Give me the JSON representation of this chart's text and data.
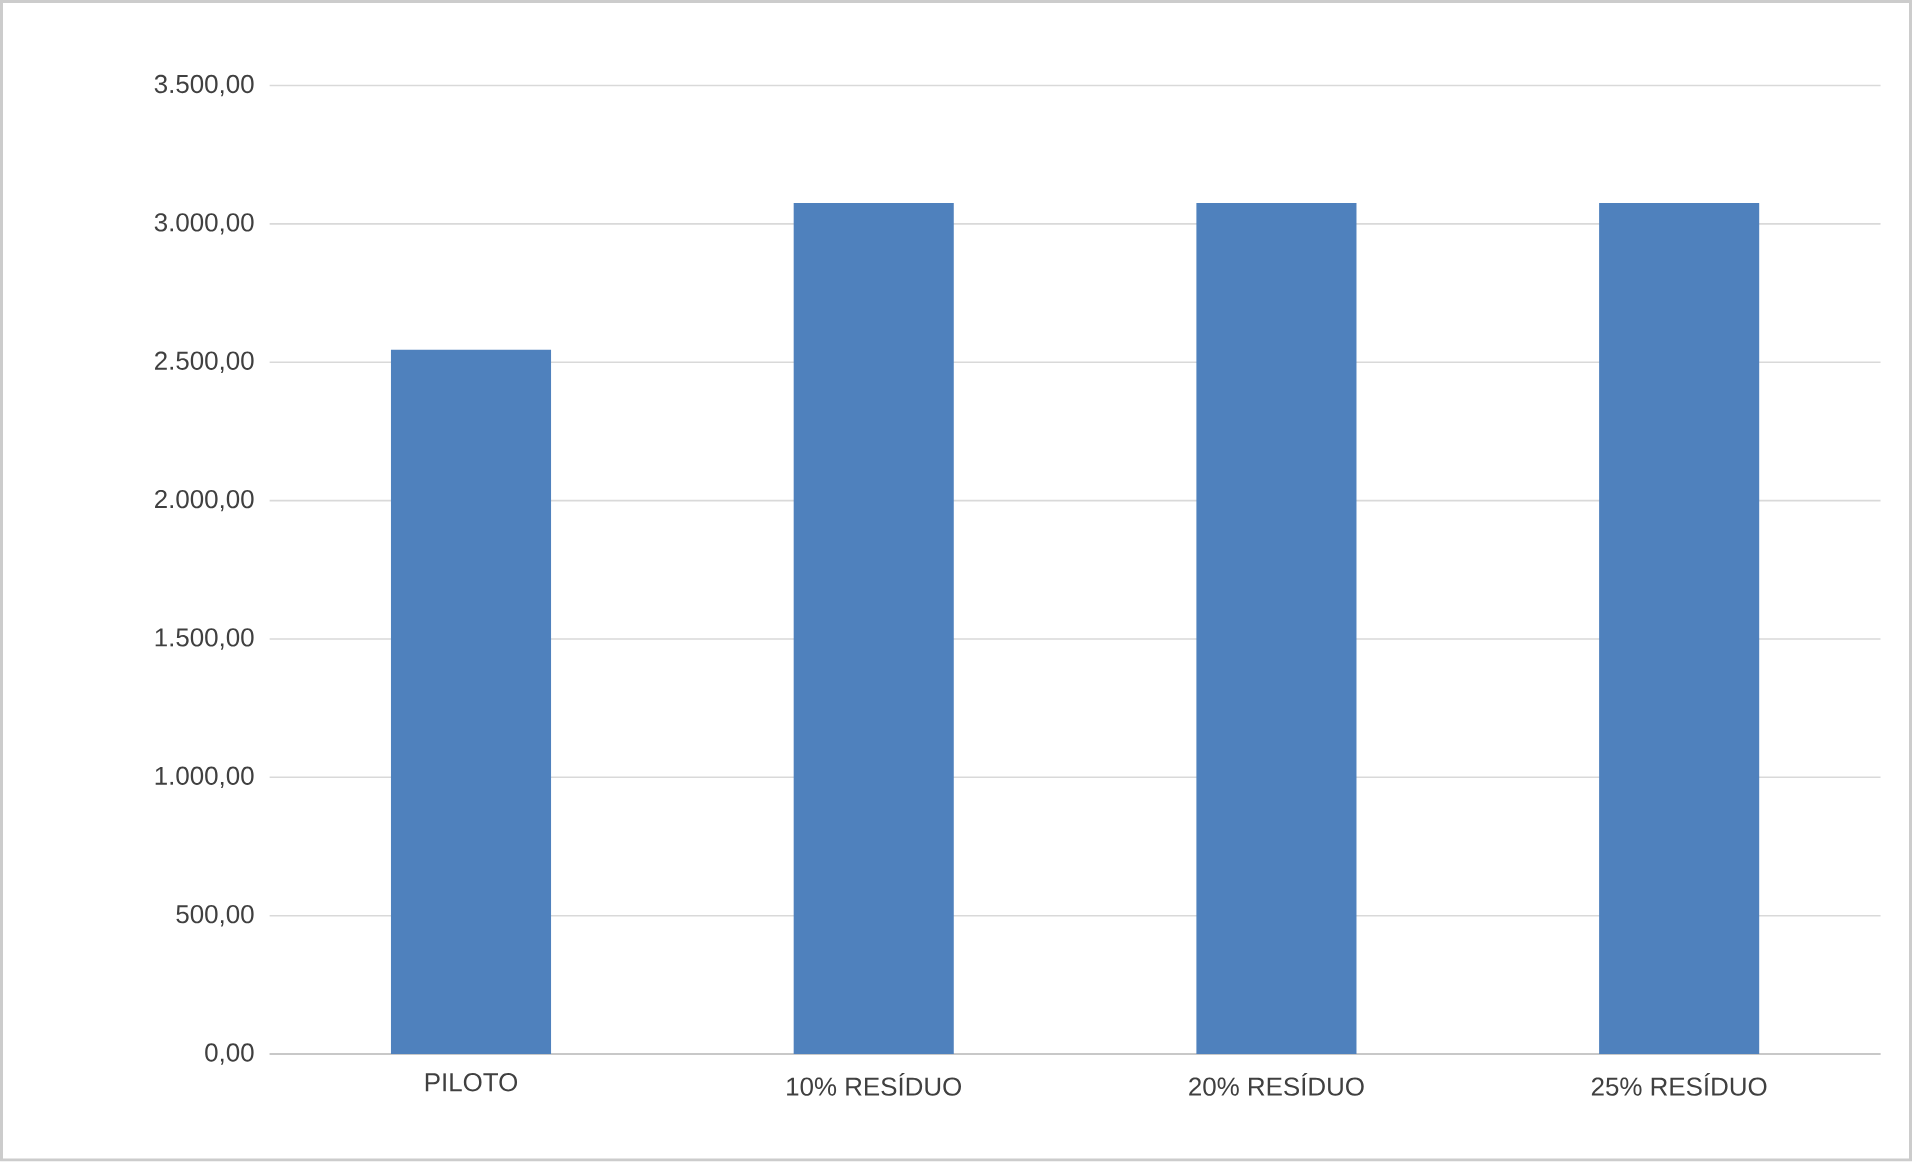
{
  "chart_data": {
    "type": "bar",
    "categories": [
      "PILOTO",
      "10% RESÍDUO",
      "20% RESÍDUO",
      "25% RESÍDUO"
    ],
    "values": [
      2545,
      3075,
      3075,
      3075
    ],
    "color": "#4f81bd",
    "ylim": [
      0,
      3500
    ],
    "yticks": [
      {
        "value": 0,
        "label": "0,00"
      },
      {
        "value": 500,
        "label": "500,00"
      },
      {
        "value": 1000,
        "label": "1.000,00"
      },
      {
        "value": 1500,
        "label": "1.500,00"
      },
      {
        "value": 2000,
        "label": "2.000,00"
      },
      {
        "value": 2500,
        "label": "2.500,00"
      },
      {
        "value": 3000,
        "label": "3.000,00"
      },
      {
        "value": 3500,
        "label": "3.500,00"
      }
    ],
    "grid": "y"
  }
}
